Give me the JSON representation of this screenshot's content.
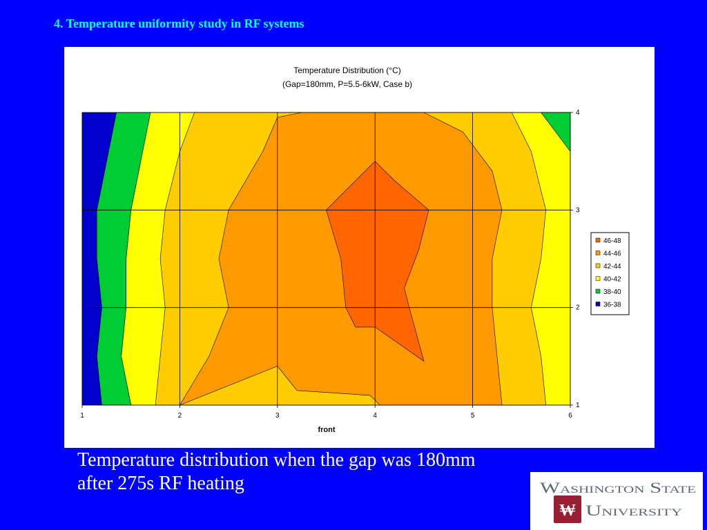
{
  "slide": {
    "title": "4. Temperature uniformity study in RF systems",
    "caption_line1": "Temperature distribution when the gap was 180mm",
    "caption_line2": "after 275s RF heating"
  },
  "logo": {
    "line1": "Washington State",
    "line2": "University"
  },
  "colors": {
    "background": "#0000ff",
    "title": "#00ffff",
    "band_46_48": "#ff6600",
    "band_44_46": "#ff9900",
    "band_42_44": "#ffcc00",
    "band_40_42": "#ffff00",
    "band_38_40": "#00cc33",
    "band_36_38": "#0000cc",
    "logo_crimson": "#981e32",
    "logo_gray": "#5e6a71"
  },
  "chart_data": {
    "type": "contour",
    "title": "Temperature Distribution (°C)",
    "subtitle": "(Gap=180mm, P=5.5-6kW, Case b)",
    "xlabel": "front",
    "ylabel": "",
    "x_ticks": [
      "1",
      "2",
      "3",
      "4",
      "5",
      "6"
    ],
    "y_ticks": [
      "1",
      "2",
      "3",
      "4"
    ],
    "xlim": [
      1,
      6
    ],
    "ylim": [
      1,
      4
    ],
    "grid": true,
    "legend_position": "right",
    "legend": [
      "46-48",
      "44-46",
      "42-44",
      "40-42",
      "38-40",
      "36-38"
    ],
    "bands": [
      {
        "name": "40-42",
        "color": "#ffff00",
        "points": [
          [
            1.65,
            4
          ],
          [
            6,
            4
          ],
          [
            6,
            1
          ],
          [
            1.5,
            1
          ],
          [
            1.4,
            1.5
          ],
          [
            1.45,
            2
          ],
          [
            1.45,
            2.5
          ],
          [
            1.5,
            3
          ],
          [
            1.6,
            3.5
          ]
        ]
      },
      {
        "name": "38-40",
        "color": "#00cc33",
        "points": [
          [
            1.35,
            4
          ],
          [
            1.7,
            4
          ],
          [
            1.6,
            3.5
          ],
          [
            1.5,
            3
          ],
          [
            1.45,
            2.5
          ],
          [
            1.45,
            2
          ],
          [
            1.4,
            1.5
          ],
          [
            1.5,
            1
          ],
          [
            1.2,
            1
          ],
          [
            1.15,
            1.5
          ],
          [
            1.2,
            2
          ],
          [
            1.15,
            2.5
          ],
          [
            1.15,
            3
          ],
          [
            1.25,
            3.5
          ]
        ]
      },
      {
        "name": "38-40",
        "color": "#00cc33",
        "points": [
          [
            5.7,
            4
          ],
          [
            6,
            4
          ],
          [
            6,
            3.6
          ]
        ]
      },
      {
        "name": "36-38",
        "color": "#0000cc",
        "points": [
          [
            1,
            4
          ],
          [
            1.35,
            4
          ],
          [
            1.25,
            3.5
          ],
          [
            1.15,
            3
          ],
          [
            1.15,
            2.5
          ],
          [
            1.2,
            2
          ],
          [
            1.15,
            1.5
          ],
          [
            1.2,
            1
          ],
          [
            1,
            1
          ]
        ]
      },
      {
        "name": "42-44",
        "color": "#ffcc00",
        "points": [
          [
            2,
            3.6
          ],
          [
            2.15,
            4
          ],
          [
            5.4,
            4
          ],
          [
            5.6,
            3.6
          ],
          [
            5.75,
            3
          ],
          [
            5.7,
            2.5
          ],
          [
            5.6,
            2
          ],
          [
            5.7,
            1.5
          ],
          [
            5.75,
            1
          ],
          [
            1.75,
            1
          ],
          [
            1.8,
            1.5
          ],
          [
            1.85,
            2
          ],
          [
            1.8,
            2.5
          ],
          [
            1.85,
            3
          ]
        ]
      },
      {
        "name": "44-46",
        "color": "#ff9900",
        "points": [
          [
            3,
            3.95
          ],
          [
            3.25,
            4
          ],
          [
            4.1,
            4
          ],
          [
            4.5,
            4
          ],
          [
            4.9,
            3.8
          ],
          [
            5.2,
            3.4
          ],
          [
            5.3,
            3
          ],
          [
            5.2,
            2.5
          ],
          [
            5.2,
            2
          ],
          [
            5.25,
            1.5
          ],
          [
            5.3,
            1
          ],
          [
            4.05,
            1
          ],
          [
            3.95,
            1.1
          ],
          [
            3.2,
            1.15
          ],
          [
            3,
            1.4
          ],
          [
            2,
            1
          ],
          [
            2.3,
            1.5
          ],
          [
            2.5,
            2
          ],
          [
            2.4,
            2.5
          ],
          [
            2.5,
            3
          ],
          [
            2.85,
            3.6
          ]
        ]
      },
      {
        "name": "46-48",
        "color": "#ff6600",
        "points": [
          [
            3.5,
            3
          ],
          [
            3.8,
            3.3
          ],
          [
            4,
            3.5
          ],
          [
            4.2,
            3.3
          ],
          [
            4.55,
            3
          ],
          [
            4.45,
            2.6
          ],
          [
            4.3,
            2.2
          ],
          [
            4.35,
            2
          ],
          [
            4.5,
            1.45
          ],
          [
            4,
            1.8
          ],
          [
            3.8,
            1.8
          ],
          [
            3.7,
            2
          ],
          [
            3.65,
            2.5
          ]
        ]
      }
    ]
  }
}
